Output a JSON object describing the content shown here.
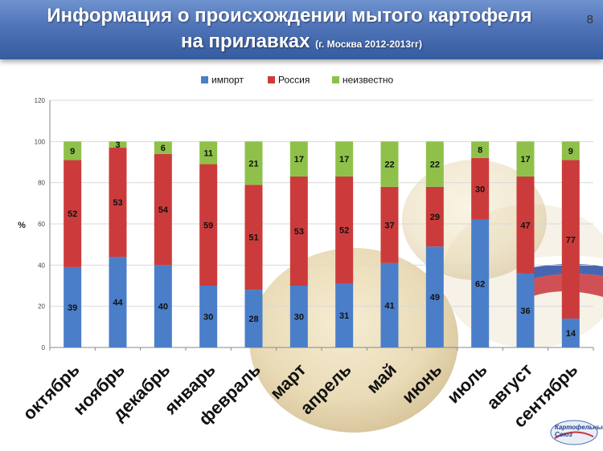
{
  "slide": {
    "title_line1": "Информация о происхождении мытого картофеля",
    "title_line2": "на прилавках",
    "subtitle": "(г. Москва 2012-2013гг)",
    "page_number": "8",
    "logo_text_1": "Картофельный",
    "logo_text_2": "Союз"
  },
  "colors": {
    "import": "#4a7ec9",
    "russia": "#cc3b3b",
    "unknown": "#8fc14a",
    "header": "#4f73b7"
  },
  "chart_data": {
    "type": "bar",
    "stacked": true,
    "ylabel": "%",
    "ylim": [
      0,
      120
    ],
    "yticks": [
      0,
      20,
      40,
      60,
      80,
      100,
      120
    ],
    "grid": true,
    "legend_position": "top",
    "categories": [
      "октябрь",
      "ноябрь",
      "декабрь",
      "январь",
      "февраль",
      "март",
      "апрель",
      "май",
      "июнь",
      "июль",
      "август",
      "сентябрь"
    ],
    "series": [
      {
        "name": "импорт",
        "color": "#4a7ec9",
        "values": [
          39,
          44,
          40,
          30,
          28,
          30,
          31,
          41,
          49,
          62,
          36,
          14
        ]
      },
      {
        "name": "Россия",
        "color": "#cc3b3b",
        "values": [
          52,
          53,
          54,
          59,
          51,
          53,
          52,
          37,
          29,
          30,
          47,
          77
        ]
      },
      {
        "name": "неизвестно",
        "color": "#8fc14a",
        "values": [
          9,
          3,
          6,
          11,
          21,
          17,
          17,
          22,
          22,
          8,
          17,
          9
        ]
      }
    ]
  }
}
